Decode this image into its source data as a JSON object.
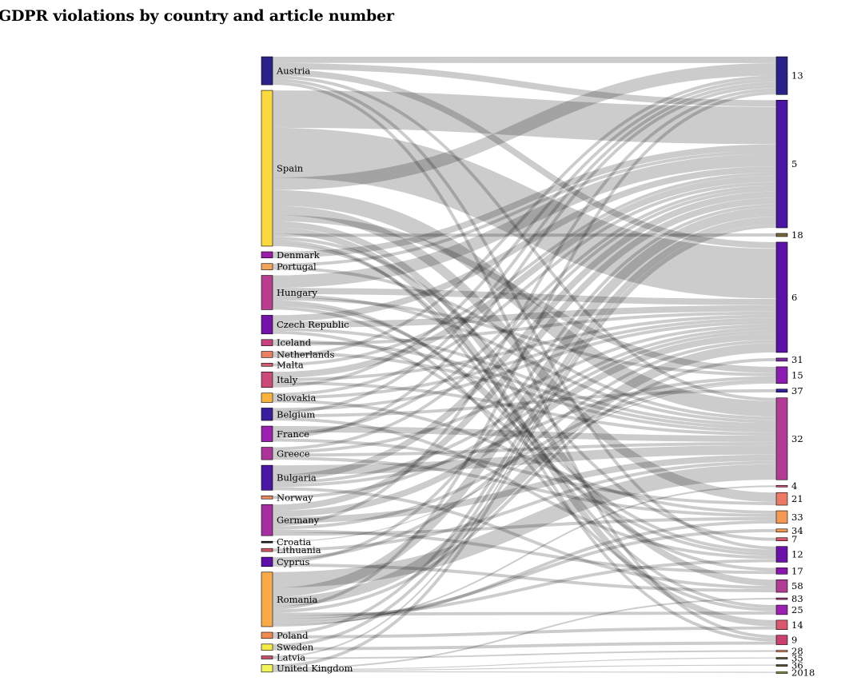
{
  "title": "GDPR violations by country and article number",
  "chart_data": {
    "type": "sankey",
    "title": "GDPR violations by country and article number",
    "sources": [
      {
        "name": "Austria",
        "color": "#2a2287"
      },
      {
        "name": "Spain",
        "color": "#fad83f"
      },
      {
        "name": "Denmark",
        "color": "#9b1ea6"
      },
      {
        "name": "Portugal",
        "color": "#f2a55a"
      },
      {
        "name": "Hungary",
        "color": "#b83f8e"
      },
      {
        "name": "Czech Republic",
        "color": "#7413a8"
      },
      {
        "name": "Iceland",
        "color": "#c6417d"
      },
      {
        "name": "Netherlands",
        "color": "#ea8165"
      },
      {
        "name": "Malta",
        "color": "#d35a70"
      },
      {
        "name": "Italy",
        "color": "#ca4a79"
      },
      {
        "name": "Slovakia",
        "color": "#f9b43e"
      },
      {
        "name": "Belgium",
        "color": "#3a1e9b"
      },
      {
        "name": "France",
        "color": "#9a22ae"
      },
      {
        "name": "Greece",
        "color": "#ab3498"
      },
      {
        "name": "Bulgaria",
        "color": "#4b16a2"
      },
      {
        "name": "Norway",
        "color": "#ee8a5f"
      },
      {
        "name": "Germany",
        "color": "#a42fa0"
      },
      {
        "name": "Croatia",
        "color": "#222222"
      },
      {
        "name": "Lithuania",
        "color": "#d0596a"
      },
      {
        "name": "Cyprus",
        "color": "#5d0fa8"
      },
      {
        "name": "Romania",
        "color": "#f8a94a"
      },
      {
        "name": "Poland",
        "color": "#f18a4e"
      },
      {
        "name": "Sweden",
        "color": "#f4e94a"
      },
      {
        "name": "Latvia",
        "color": "#c8506c"
      },
      {
        "name": "United Kingdom",
        "color": "#f3f35c"
      }
    ],
    "targets": [
      {
        "name": "13",
        "color": "#2a2287"
      },
      {
        "name": "5",
        "color": "#4b16a2"
      },
      {
        "name": "18",
        "color": "#7a6a3a"
      },
      {
        "name": "6",
        "color": "#5a12a6"
      },
      {
        "name": "31",
        "color": "#7a2aa0"
      },
      {
        "name": "15",
        "color": "#8a1cae"
      },
      {
        "name": "37",
        "color": "#3a1e9b"
      },
      {
        "name": "32",
        "color": "#b03c94"
      },
      {
        "name": "4",
        "color": "#d34f6e"
      },
      {
        "name": "21",
        "color": "#ea7a66"
      },
      {
        "name": "33",
        "color": "#f29a55"
      },
      {
        "name": "34",
        "color": "#f39a55"
      },
      {
        "name": "7",
        "color": "#d8586e"
      },
      {
        "name": "12",
        "color": "#6a12a8"
      },
      {
        "name": "17",
        "color": "#8a16ae"
      },
      {
        "name": "58",
        "color": "#b03c94"
      },
      {
        "name": "83",
        "color": "#a3357e"
      },
      {
        "name": "25",
        "color": "#9a22ae"
      },
      {
        "name": "14",
        "color": "#d8586e"
      },
      {
        "name": "9",
        "color": "#c8406e"
      },
      {
        "name": "28",
        "color": "#ee8a5f"
      },
      {
        "name": "35",
        "color": "#6a5a3a"
      },
      {
        "name": "36",
        "color": "#5a4a2a"
      },
      {
        "name": "2018",
        "color": "#8a8a3a"
      }
    ],
    "links": [
      {
        "source": "Austria",
        "target": "13",
        "value": 2
      },
      {
        "source": "Austria",
        "target": "5",
        "value": 2
      },
      {
        "source": "Austria",
        "target": "6",
        "value": 2
      },
      {
        "source": "Austria",
        "target": "32",
        "value": 1
      },
      {
        "source": "Austria",
        "target": "12",
        "value": 1
      },
      {
        "source": "Austria",
        "target": "9",
        "value": 1
      },
      {
        "source": "Spain",
        "target": "5",
        "value": 12
      },
      {
        "source": "Spain",
        "target": "6",
        "value": 16
      },
      {
        "source": "Spain",
        "target": "13",
        "value": 4
      },
      {
        "source": "Spain",
        "target": "32",
        "value": 5
      },
      {
        "source": "Spain",
        "target": "21",
        "value": 3
      },
      {
        "source": "Spain",
        "target": "15",
        "value": 2
      },
      {
        "source": "Spain",
        "target": "58",
        "value": 2
      },
      {
        "source": "Spain",
        "target": "14",
        "value": 2
      },
      {
        "source": "Spain",
        "target": "18",
        "value": 1
      },
      {
        "source": "Spain",
        "target": "7",
        "value": 1
      },
      {
        "source": "Spain",
        "target": "9",
        "value": 1
      },
      {
        "source": "Spain",
        "target": "25",
        "value": 1
      },
      {
        "source": "Denmark",
        "target": "5",
        "value": 2
      },
      {
        "source": "Portugal",
        "target": "5",
        "value": 1
      },
      {
        "source": "Portugal",
        "target": "32",
        "value": 1
      },
      {
        "source": "Hungary",
        "target": "5",
        "value": 4
      },
      {
        "source": "Hungary",
        "target": "6",
        "value": 2
      },
      {
        "source": "Hungary",
        "target": "32",
        "value": 1
      },
      {
        "source": "Hungary",
        "target": "15",
        "value": 1
      },
      {
        "source": "Hungary",
        "target": "17",
        "value": 1
      },
      {
        "source": "Hungary",
        "target": "12",
        "value": 1
      },
      {
        "source": "Hungary",
        "target": "25",
        "value": 1
      },
      {
        "source": "Czech Republic",
        "target": "5",
        "value": 2
      },
      {
        "source": "Czech Republic",
        "target": "6",
        "value": 2
      },
      {
        "source": "Czech Republic",
        "target": "32",
        "value": 1
      },
      {
        "source": "Czech Republic",
        "target": "12",
        "value": 1
      },
      {
        "source": "Iceland",
        "target": "32",
        "value": 1
      },
      {
        "source": "Iceland",
        "target": "6",
        "value": 1
      },
      {
        "source": "Netherlands",
        "target": "32",
        "value": 1
      },
      {
        "source": "Netherlands",
        "target": "13",
        "value": 1
      },
      {
        "source": "Malta",
        "target": "5",
        "value": 1
      },
      {
        "source": "Italy",
        "target": "5",
        "value": 2
      },
      {
        "source": "Italy",
        "target": "6",
        "value": 1
      },
      {
        "source": "Italy",
        "target": "32",
        "value": 1
      },
      {
        "source": "Italy",
        "target": "13",
        "value": 1
      },
      {
        "source": "Slovakia",
        "target": "5",
        "value": 1
      },
      {
        "source": "Slovakia",
        "target": "6",
        "value": 1
      },
      {
        "source": "Slovakia",
        "target": "33",
        "value": 1
      },
      {
        "source": "Belgium",
        "target": "6",
        "value": 1
      },
      {
        "source": "Belgium",
        "target": "13",
        "value": 1
      },
      {
        "source": "Belgium",
        "target": "37",
        "value": 1
      },
      {
        "source": "Belgium",
        "target": "12",
        "value": 1
      },
      {
        "source": "France",
        "target": "32",
        "value": 2
      },
      {
        "source": "France",
        "target": "5",
        "value": 1
      },
      {
        "source": "France",
        "target": "13",
        "value": 1
      },
      {
        "source": "France",
        "target": "21",
        "value": 1
      },
      {
        "source": "Greece",
        "target": "5",
        "value": 1
      },
      {
        "source": "Greece",
        "target": "6",
        "value": 1
      },
      {
        "source": "Greece",
        "target": "32",
        "value": 1
      },
      {
        "source": "Greece",
        "target": "33",
        "value": 1
      },
      {
        "source": "Bulgaria",
        "target": "32",
        "value": 3
      },
      {
        "source": "Bulgaria",
        "target": "5",
        "value": 2
      },
      {
        "source": "Bulgaria",
        "target": "6",
        "value": 1
      },
      {
        "source": "Bulgaria",
        "target": "15",
        "value": 1
      },
      {
        "source": "Bulgaria",
        "target": "58",
        "value": 1
      },
      {
        "source": "Norway",
        "target": "6",
        "value": 1
      },
      {
        "source": "Germany",
        "target": "5",
        "value": 2
      },
      {
        "source": "Germany",
        "target": "6",
        "value": 2
      },
      {
        "source": "Germany",
        "target": "32",
        "value": 2
      },
      {
        "source": "Germany",
        "target": "13",
        "value": 1
      },
      {
        "source": "Germany",
        "target": "15",
        "value": 1
      },
      {
        "source": "Germany",
        "target": "17",
        "value": 1
      },
      {
        "source": "Germany",
        "target": "33",
        "value": 1
      },
      {
        "source": "Croatia",
        "target": "15",
        "value": 0.3
      },
      {
        "source": "Lithuania",
        "target": "32",
        "value": 1
      },
      {
        "source": "Cyprus",
        "target": "6",
        "value": 1
      },
      {
        "source": "Cyprus",
        "target": "5",
        "value": 1
      },
      {
        "source": "Cyprus",
        "target": "58",
        "value": 1
      },
      {
        "source": "Romania",
        "target": "32",
        "value": 5
      },
      {
        "source": "Romania",
        "target": "5",
        "value": 3
      },
      {
        "source": "Romania",
        "target": "6",
        "value": 3
      },
      {
        "source": "Romania",
        "target": "13",
        "value": 1
      },
      {
        "source": "Romania",
        "target": "31",
        "value": 1
      },
      {
        "source": "Romania",
        "target": "25",
        "value": 1
      },
      {
        "source": "Romania",
        "target": "12",
        "value": 1
      },
      {
        "source": "Romania",
        "target": "34",
        "value": 1
      },
      {
        "source": "Romania",
        "target": "33",
        "value": 1
      },
      {
        "source": "Romania",
        "target": "4",
        "value": 0.5
      },
      {
        "source": "Poland",
        "target": "5",
        "value": 1
      },
      {
        "source": "Poland",
        "target": "14",
        "value": 1
      },
      {
        "source": "Sweden",
        "target": "5",
        "value": 1
      },
      {
        "source": "Sweden",
        "target": "9",
        "value": 1
      },
      {
        "source": "Latvia",
        "target": "5",
        "value": 0.5
      },
      {
        "source": "Latvia",
        "target": "28",
        "value": 0.5
      },
      {
        "source": "United Kingdom",
        "target": "5",
        "value": 1
      },
      {
        "source": "United Kingdom",
        "target": "83",
        "value": 0.5
      },
      {
        "source": "United Kingdom",
        "target": "35",
        "value": 0.3
      },
      {
        "source": "United Kingdom",
        "target": "36",
        "value": 0.3
      },
      {
        "source": "United Kingdom",
        "target": "2018",
        "value": 0.3
      }
    ]
  }
}
